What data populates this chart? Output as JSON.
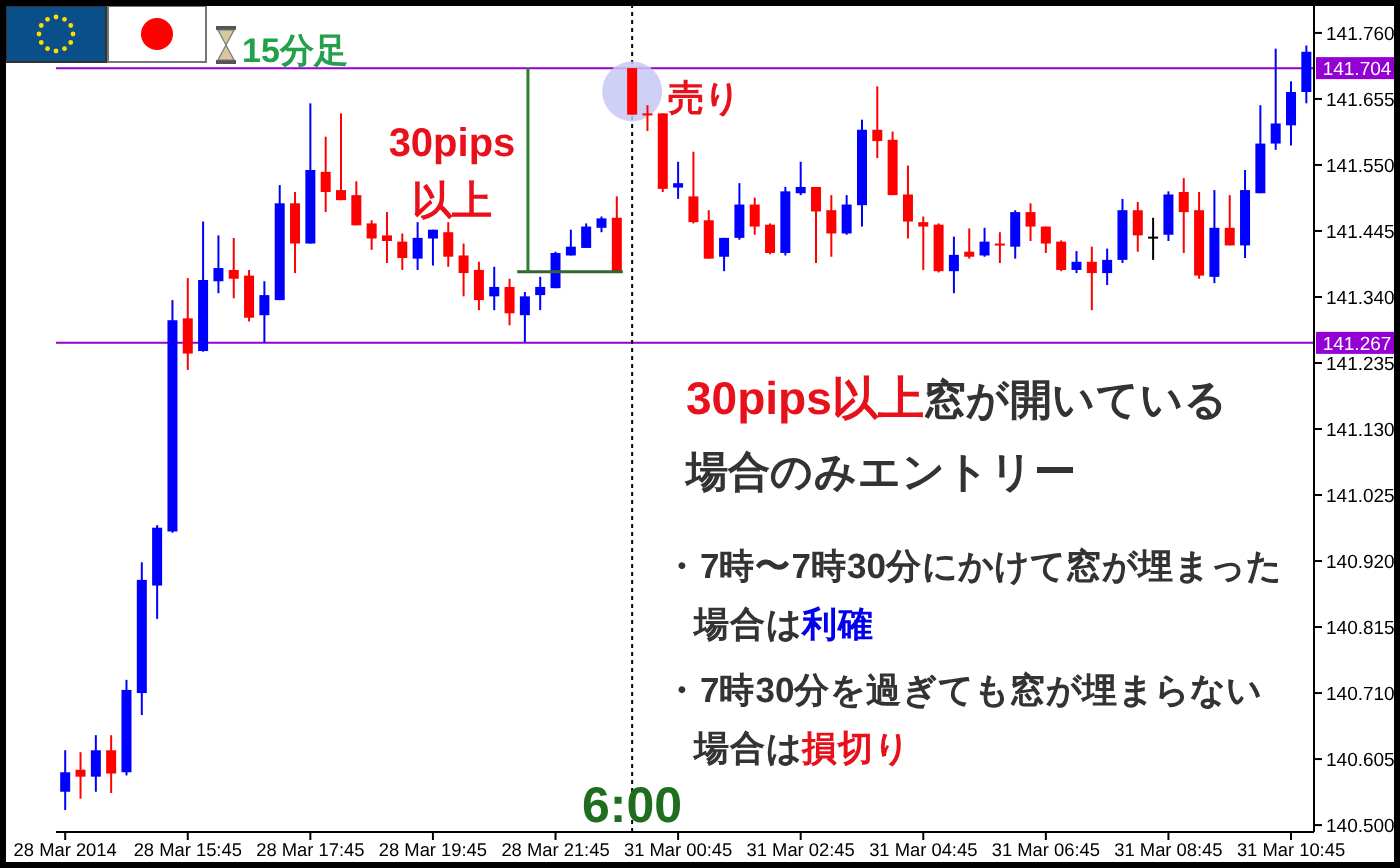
{
  "chart_data": {
    "type": "candlestick",
    "title": "15分足",
    "categories": [
      "28 Mar 2014",
      null,
      null,
      null,
      null,
      null,
      null,
      null,
      "28 Mar 15:45",
      null,
      null,
      null,
      null,
      null,
      null,
      null,
      "28 Mar 17:45",
      null,
      null,
      null,
      null,
      null,
      null,
      null,
      "28 Mar 19:45",
      null,
      null,
      null,
      null,
      null,
      null,
      null,
      "28 Mar 21:45",
      null,
      null,
      null,
      null,
      null,
      null,
      null,
      "31 Mar 00:45",
      null,
      null,
      null,
      null,
      null,
      null,
      null,
      "31 Mar 02:45",
      null,
      null,
      null,
      null,
      null,
      null,
      null,
      "31 Mar 04:45",
      null,
      null,
      null,
      null,
      null,
      null,
      null,
      "31 Mar 06:45",
      null,
      null,
      null,
      null,
      null,
      null,
      null,
      "31 Mar 08:45",
      null,
      null,
      null,
      null,
      null,
      null,
      null,
      "31 Mar 10:45",
      null
    ],
    "ohlc": [
      [
        140.553,
        140.619,
        140.524,
        140.584
      ],
      [
        140.588,
        140.616,
        140.542,
        140.577
      ],
      [
        140.577,
        140.643,
        140.553,
        140.619
      ],
      [
        140.619,
        140.643,
        140.551,
        140.582
      ],
      [
        140.584,
        140.731,
        140.579,
        140.715
      ],
      [
        140.71,
        140.918,
        140.675,
        140.89
      ],
      [
        140.881,
        140.977,
        140.828,
        140.973
      ],
      [
        140.967,
        141.335,
        140.965,
        141.303
      ],
      [
        141.306,
        141.37,
        141.224,
        141.25
      ],
      [
        141.254,
        141.46,
        141.253,
        141.367
      ],
      [
        141.365,
        141.438,
        141.346,
        141.386
      ],
      [
        141.383,
        141.434,
        141.338,
        141.369
      ],
      [
        141.374,
        141.383,
        141.301,
        141.307
      ],
      [
        141.311,
        141.365,
        141.267,
        141.343
      ],
      [
        141.335,
        141.518,
        141.335,
        141.489
      ],
      [
        141.489,
        141.507,
        141.378,
        141.425
      ],
      [
        141.425,
        141.648,
        141.425,
        141.542
      ],
      [
        141.539,
        141.595,
        141.475,
        141.507
      ],
      [
        141.51,
        141.632,
        141.494,
        141.494
      ],
      [
        141.502,
        141.524,
        141.454,
        141.454
      ],
      [
        141.457,
        141.462,
        141.415,
        141.433
      ],
      [
        141.438,
        141.475,
        141.394,
        141.429
      ],
      [
        141.428,
        141.441,
        141.383,
        141.402
      ],
      [
        141.401,
        141.459,
        141.383,
        141.434
      ],
      [
        141.433,
        141.447,
        141.39,
        141.447
      ],
      [
        141.443,
        141.459,
        141.388,
        141.404
      ],
      [
        141.406,
        141.425,
        141.341,
        141.378
      ],
      [
        141.383,
        141.396,
        141.319,
        141.335
      ],
      [
        141.341,
        141.388,
        141.319,
        141.356
      ],
      [
        141.356,
        141.369,
        141.295,
        141.314
      ],
      [
        141.311,
        141.348,
        141.268,
        141.341
      ],
      [
        141.343,
        141.372,
        141.319,
        141.356
      ],
      [
        141.354,
        141.412,
        141.354,
        141.41
      ],
      [
        141.406,
        141.447,
        141.406,
        141.42
      ],
      [
        141.418,
        141.457,
        141.418,
        141.452
      ],
      [
        141.45,
        141.468,
        141.443,
        141.465
      ],
      [
        141.466,
        141.5,
        141.38,
        141.38
      ],
      [
        141.704,
        141.704,
        141.63,
        141.63
      ],
      [
        141.632,
        141.645,
        141.604,
        141.629
      ],
      [
        141.632,
        141.632,
        141.507,
        141.512
      ],
      [
        141.514,
        141.555,
        141.496,
        141.521
      ],
      [
        141.5,
        141.571,
        141.457,
        141.459
      ],
      [
        141.462,
        141.478,
        141.401,
        141.401
      ],
      [
        141.404,
        141.434,
        141.381,
        141.434
      ],
      [
        141.434,
        141.521,
        141.431,
        141.487
      ],
      [
        141.487,
        141.498,
        141.439,
        141.452
      ],
      [
        141.455,
        141.457,
        141.408,
        141.41
      ],
      [
        141.41,
        141.515,
        141.406,
        141.508
      ],
      [
        141.505,
        141.555,
        141.502,
        141.515
      ],
      [
        141.515,
        141.515,
        141.394,
        141.476
      ],
      [
        141.478,
        141.502,
        141.404,
        141.441
      ],
      [
        141.441,
        141.502,
        141.439,
        141.487
      ],
      [
        141.486,
        141.622,
        141.452,
        141.606
      ],
      [
        141.606,
        141.675,
        141.561,
        141.588
      ],
      [
        141.59,
        141.603,
        141.502,
        141.502
      ],
      [
        141.503,
        141.549,
        141.433,
        141.46
      ],
      [
        141.459,
        141.468,
        141.383,
        141.452
      ],
      [
        141.455,
        141.457,
        141.379,
        141.381
      ],
      [
        141.381,
        141.436,
        141.346,
        141.407
      ],
      [
        141.412,
        141.449,
        141.401,
        141.404
      ],
      [
        141.406,
        141.45,
        141.404,
        141.428
      ],
      [
        141.425,
        141.443,
        141.394,
        141.422
      ],
      [
        141.42,
        141.478,
        141.401,
        141.475
      ],
      [
        141.475,
        141.489,
        141.429,
        141.452
      ],
      [
        141.452,
        141.452,
        141.41,
        141.425
      ],
      [
        141.428,
        141.43,
        141.381,
        141.383
      ],
      [
        141.383,
        141.413,
        141.378,
        141.396
      ],
      [
        141.396,
        141.42,
        141.319,
        141.378
      ],
      [
        141.378,
        141.417,
        141.359,
        141.399
      ],
      [
        141.399,
        141.496,
        141.394,
        141.478
      ],
      [
        141.478,
        141.491,
        141.412,
        141.438
      ],
      [
        141.436,
        141.466,
        141.399,
        141.436
      ],
      [
        141.439,
        141.508,
        141.429,
        141.503
      ],
      [
        141.507,
        141.529,
        141.41,
        141.475
      ],
      [
        141.478,
        141.507,
        141.369,
        141.374
      ],
      [
        141.372,
        141.51,
        141.362,
        141.45
      ],
      [
        141.45,
        141.502,
        141.422,
        141.422
      ],
      [
        141.422,
        141.542,
        141.402,
        141.51
      ],
      [
        141.505,
        141.645,
        141.505,
        141.584
      ],
      [
        141.584,
        141.735,
        141.574,
        141.616
      ],
      [
        141.613,
        141.683,
        141.581,
        141.666
      ],
      [
        141.666,
        141.74,
        141.648,
        141.73
      ]
    ],
    "colors": [
      "#0000ff",
      "#ff0000",
      "#0000ff",
      "#ff0000",
      "#0000ff",
      "#0000ff",
      "#0000ff",
      "#0000ff",
      "#ff0000",
      "#0000ff",
      "#0000ff",
      "#ff0000",
      "#ff0000",
      "#0000ff",
      "#0000ff",
      "#ff0000",
      "#0000ff",
      "#ff0000",
      "#ff0000",
      "#ff0000",
      "#ff0000",
      "#ff0000",
      "#ff0000",
      "#0000ff",
      "#0000ff",
      "#ff0000",
      "#ff0000",
      "#ff0000",
      "#0000ff",
      "#ff0000",
      "#0000ff",
      "#0000ff",
      "#0000ff",
      "#0000ff",
      "#0000ff",
      "#0000ff",
      "#ff0000",
      "#ff0000",
      "#ff0000",
      "#ff0000",
      "#0000ff",
      "#ff0000",
      "#ff0000",
      "#0000ff",
      "#0000ff",
      "#ff0000",
      "#ff0000",
      "#0000ff",
      "#0000ff",
      "#ff0000",
      "#ff0000",
      "#0000ff",
      "#0000ff",
      "#ff0000",
      "#ff0000",
      "#ff0000",
      "#ff0000",
      "#ff0000",
      "#0000ff",
      "#ff0000",
      "#0000ff",
      "#ff0000",
      "#0000ff",
      "#ff0000",
      "#ff0000",
      "#ff0000",
      "#0000ff",
      "#ff0000",
      "#0000ff",
      "#0000ff",
      "#ff0000",
      "#000000",
      "#0000ff",
      "#ff0000",
      "#ff0000",
      "#0000ff",
      "#ff0000",
      "#0000ff",
      "#0000ff",
      "#0000ff",
      "#0000ff",
      "#0000ff"
    ],
    "ylim": [
      140.489,
      141.806
    ],
    "yticks": [
      {
        "value": 140.5,
        "label": "140.500"
      },
      140.605,
      {
        "value": 140.71,
        "label": "140.710"
      },
      140.815,
      {
        "value": 140.92,
        "label": "140.920"
      },
      141.025,
      {
        "value": 141.13,
        "label": "141.130"
      },
      141.235,
      {
        "value": 141.34,
        "label": "141.340"
      },
      141.445,
      {
        "value": 141.55,
        "label": "141.550"
      },
      141.655,
      {
        "value": 141.76,
        "label": "141.760"
      }
    ],
    "ref_lines": [
      {
        "axis": "y",
        "value": 141.704,
        "label": "141.704",
        "color": "#9400d3"
      },
      {
        "axis": "y",
        "value": 141.267,
        "label": "141.267",
        "color": "#9400d3"
      }
    ],
    "annotations": [
      "30pips\n以上",
      "売り",
      "30pips以上",
      "窓が開いている",
      "場合のみエントリー",
      "・7時〜7時30分にかけて窓が埋まった",
      "場合は",
      "利確",
      "・7時30分を過ぎても窓が埋まらない",
      "場合は",
      "損切り",
      "6:00"
    ]
  }
}
